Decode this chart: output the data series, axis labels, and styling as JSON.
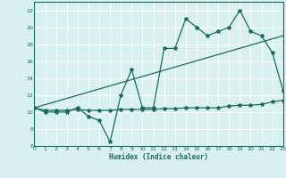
{
  "line1_x": [
    0,
    1,
    2,
    3,
    4,
    5,
    6,
    7,
    8,
    9,
    10,
    11,
    12,
    13,
    14,
    15,
    16,
    17,
    18,
    19,
    20,
    21,
    22,
    23
  ],
  "line1_y": [
    10.5,
    10.0,
    10.0,
    10.0,
    10.5,
    9.5,
    9.0,
    6.5,
    12.0,
    15.0,
    10.5,
    10.5,
    17.5,
    17.5,
    21.0,
    20.0,
    19.0,
    19.5,
    20.0,
    22.0,
    19.5,
    19.0,
    17.0,
    12.5
  ],
  "line2_x": [
    0,
    1,
    2,
    3,
    4,
    5,
    6,
    7,
    8,
    9,
    10,
    11,
    12,
    13,
    14,
    15,
    16,
    17,
    18,
    19,
    20,
    21,
    22,
    23
  ],
  "line2_y": [
    10.5,
    10.2,
    10.2,
    10.2,
    10.3,
    10.2,
    10.2,
    10.2,
    10.3,
    10.3,
    10.3,
    10.3,
    10.4,
    10.4,
    10.5,
    10.5,
    10.5,
    10.5,
    10.7,
    10.8,
    10.8,
    10.9,
    11.2,
    11.4
  ],
  "line3_x": [
    0,
    23
  ],
  "line3_y": [
    10.5,
    19.0
  ],
  "color": "#1a6b5a",
  "bg_color": "#d8f0ee",
  "grid_color": "#ffffff",
  "xlabel": "Humidex (Indice chaleur)",
  "ylim": [
    6,
    23
  ],
  "xlim": [
    0,
    23
  ],
  "yticks": [
    6,
    8,
    10,
    12,
    14,
    16,
    18,
    20,
    22
  ],
  "xticks": [
    0,
    1,
    2,
    3,
    4,
    5,
    6,
    7,
    8,
    9,
    10,
    11,
    12,
    13,
    14,
    15,
    16,
    17,
    18,
    19,
    20,
    21,
    22,
    23
  ],
  "markersize": 3.0,
  "linewidth": 0.9
}
